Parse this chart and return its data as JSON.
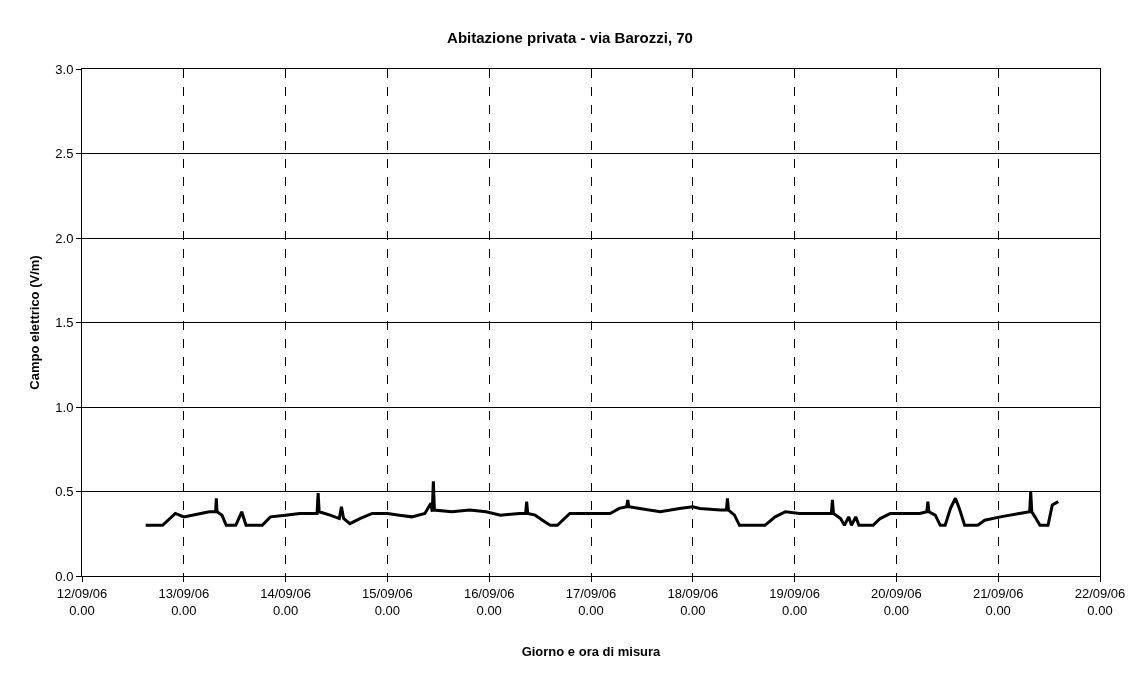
{
  "chart_data": {
    "type": "line",
    "title": "Abitazione privata - via Barozzi, 70",
    "xlabel": "Giorno e ora di misura",
    "ylabel": "Campo elettrico (V/m)",
    "xlim": [
      "--09-12",
      "--09-22"
    ],
    "xticks": [
      {
        "value": "--09-12",
        "label": "12/09/06\n0.00"
      },
      {
        "value": "--09-13",
        "label": "13/09/06\n0.00"
      },
      {
        "value": "--09-14",
        "label": "14/09/06\n0.00"
      },
      {
        "value": "--09-15",
        "label": "15/09/06\n0.00"
      },
      {
        "value": "--09-16",
        "label": "16/09/06\n0.00"
      },
      {
        "value": "--09-17",
        "label": "17/09/06\n0.00"
      },
      {
        "value": "--09-18",
        "label": "18/09/06\n0.00"
      },
      {
        "value": "--09-19",
        "label": "19/09/06\n0.00"
      },
      {
        "value": "--09-20",
        "label": "20/09/06\n0.00"
      },
      {
        "value": "--09-21",
        "label": "21/09/06\n0.00"
      },
      {
        "value": "--09-22",
        "label": "22/09/06\n0.00"
      }
    ],
    "ylim": [
      0,
      3
    ],
    "yticks": [
      {
        "value": 0,
        "label": "0.0"
      },
      {
        "value": 0.5,
        "label": "0.5"
      },
      {
        "value": 1,
        "label": "1.0"
      },
      {
        "value": 1.5,
        "label": "1.5"
      },
      {
        "value": 2,
        "label": "2.0"
      },
      {
        "value": 2.5,
        "label": "2.5"
      },
      {
        "value": 3,
        "label": "3.0"
      }
    ],
    "grid": true,
    "marker": "none",
    "line_style": "solid",
    "series": [
      {
        "color": "#000000",
        "x": [
          "--09-12T15:00",
          "--09-12T19:00",
          "--09-12T22:00",
          "--09-13T00:00",
          "--09-13T04:00",
          "--09-13T06:00",
          "--09-13T07:30",
          "--09-13T07:40",
          "--09-13T07:50",
          "--09-13T09:00",
          "--09-13T10:00",
          "--09-13T12:15",
          "--09-13T13:40",
          "--09-13T14:40",
          "--09-13T18:30",
          "--09-13T20:25",
          "--09-14T00:00",
          "--09-14T03:20",
          "--09-14T07:25",
          "--09-14T07:40",
          "--09-14T07:55",
          "--09-14T10:30",
          "--09-14T12:40",
          "--09-14T13:10",
          "--09-14T13:40",
          "--09-14T15:10",
          "--09-14T17:30",
          "--09-14T20:25",
          "--09-15T00:00",
          "--09-15T02:50",
          "--09-15T05:45",
          "--09-15T08:50",
          "--09-15T10:15",
          "--09-15T10:35",
          "--09-15T10:50",
          "--09-15T11:05",
          "--09-15T15:10",
          "--09-15T19:25",
          "--09-15T23:15",
          "--09-16T02:40",
          "--09-16T07:10",
          "--09-16T08:35",
          "--09-16T08:50",
          "--09-16T09:05",
          "--09-16T10:50",
          "--09-16T13:10",
          "--09-16T14:25",
          "--09-16T16:05",
          "--09-16T19:00",
          "--09-16T23:45",
          "--09-17T04:30",
          "--09-17T06:40",
          "--09-17T08:25",
          "--09-17T08:40",
          "--09-17T08:55",
          "--09-17T11:30",
          "--09-17T16:20",
          "--09-17T20:50",
          "--09-18T00:00",
          "--09-18T01:40",
          "--09-18T06:30",
          "--09-18T07:55",
          "--09-18T08:10",
          "--09-18T08:25",
          "--09-18T09:50",
          "--09-18T11:00",
          "--09-18T17:00",
          "--09-18T19:25",
          "--09-18T21:50",
          "--09-19T01:10",
          "--09-19T06:00",
          "--09-19T08:40",
          "--09-19T08:55",
          "--09-19T09:10",
          "--09-19T10:50",
          "--09-19T11:45",
          "--09-19T12:45",
          "--09-19T13:25",
          "--09-19T14:25",
          "--09-19T15:10",
          "--09-19T18:30",
          "--09-19T20:10",
          "--09-19T22:35",
          "--09-20T05:30",
          "--09-20T07:10",
          "--09-20T07:25",
          "--09-20T07:40",
          "--09-20T09:10",
          "--09-20T10:20",
          "--09-20T11:30",
          "--09-20T12:45",
          "--09-20T13:55",
          "--09-20T14:50",
          "--09-20T16:05",
          "--09-20T19:10",
          "--09-20T20:50",
          "--09-21T00:30",
          "--09-21T05:00",
          "--09-21T07:25",
          "--09-21T07:40",
          "--09-21T07:55",
          "--09-21T08:40",
          "--09-21T09:50",
          "--09-21T11:45",
          "--09-21T12:45",
          "--09-21T14:10"
        ],
        "values": [
          0.3,
          0.3,
          0.37,
          0.35,
          0.37,
          0.38,
          0.38,
          0.46,
          0.38,
          0.36,
          0.3,
          0.3,
          0.38,
          0.3,
          0.3,
          0.35,
          0.36,
          0.37,
          0.37,
          0.49,
          0.38,
          0.36,
          0.34,
          0.41,
          0.34,
          0.31,
          0.34,
          0.37,
          0.37,
          0.36,
          0.35,
          0.37,
          0.43,
          0.38,
          0.56,
          0.39,
          0.38,
          0.39,
          0.38,
          0.36,
          0.37,
          0.37,
          0.44,
          0.37,
          0.36,
          0.32,
          0.3,
          0.3,
          0.37,
          0.37,
          0.37,
          0.4,
          0.41,
          0.45,
          0.41,
          0.4,
          0.38,
          0.4,
          0.41,
          0.4,
          0.39,
          0.39,
          0.46,
          0.39,
          0.36,
          0.3,
          0.3,
          0.35,
          0.38,
          0.37,
          0.37,
          0.37,
          0.45,
          0.37,
          0.34,
          0.3,
          0.35,
          0.3,
          0.35,
          0.3,
          0.3,
          0.34,
          0.37,
          0.37,
          0.38,
          0.44,
          0.38,
          0.36,
          0.3,
          0.3,
          0.4,
          0.46,
          0.4,
          0.3,
          0.3,
          0.33,
          0.35,
          0.37,
          0.38,
          0.5,
          0.38,
          0.35,
          0.3,
          0.3,
          0.42,
          0.44
        ]
      }
    ]
  }
}
